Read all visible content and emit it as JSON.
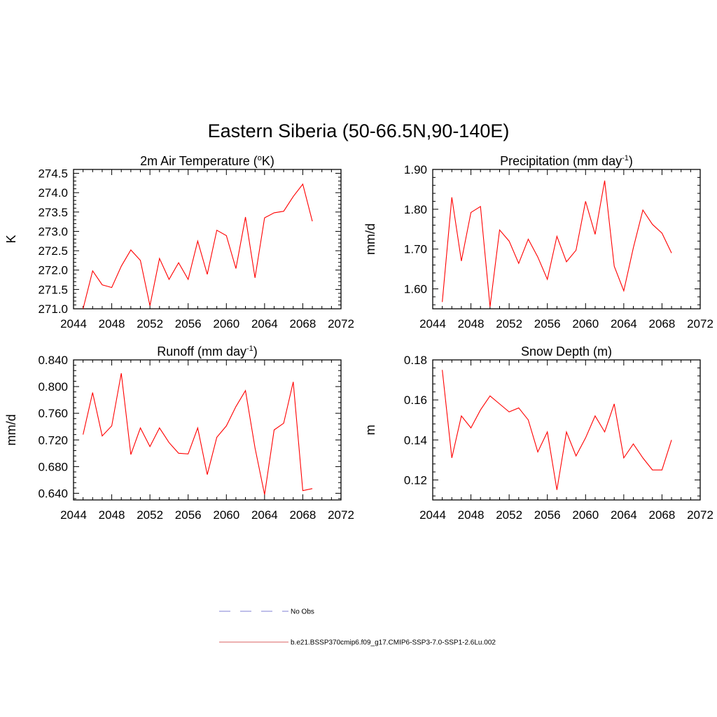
{
  "figure": {
    "title": "Eastern Siberia (50-66.5N,90-140E)"
  },
  "legend": {
    "items": [
      {
        "label": "No Obs",
        "color": "#9999dd",
        "style": "dashed"
      },
      {
        "label": "b.e21.BSSP370cmip6.f09_g17.CMIP6-SSP3-7.0-SSP1-2.6Lu.002",
        "color": "#e08080",
        "style": "solid"
      }
    ]
  },
  "chart_data": [
    {
      "type": "line",
      "title": "2m Air Temperature (",
      "title_sup": "o",
      "title_after": "K)",
      "ylabel": "K",
      "xlim": [
        2044,
        2072
      ],
      "xticks": [
        2044,
        2048,
        2052,
        2056,
        2060,
        2064,
        2068,
        2072
      ],
      "ylim": [
        271.0,
        274.6
      ],
      "yticks": [
        271.0,
        271.5,
        272.0,
        272.5,
        273.0,
        273.5,
        274.0,
        274.5
      ],
      "ytick_labels": [
        "271.0",
        "271.5",
        "272.0",
        "272.5",
        "273.0",
        "273.5",
        "274.0",
        "274.5"
      ],
      "line_color": "#ff0000",
      "x": [
        2045,
        2046,
        2047,
        2048,
        2049,
        2050,
        2051,
        2052,
        2053,
        2054,
        2055,
        2056,
        2057,
        2058,
        2059,
        2060,
        2061,
        2062,
        2063,
        2064,
        2065,
        2066,
        2067,
        2068,
        2069
      ],
      "values": [
        271.0,
        271.98,
        271.62,
        271.55,
        272.1,
        272.52,
        272.25,
        271.08,
        272.3,
        271.76,
        272.19,
        271.76,
        272.75,
        271.89,
        273.03,
        272.89,
        272.04,
        273.37,
        271.8,
        273.35,
        273.48,
        273.52,
        273.9,
        274.22,
        273.26
      ]
    },
    {
      "type": "line",
      "title": "Precipitation (mm day",
      "title_sup": "-1",
      "title_after": ")",
      "ylabel": "mm/d",
      "xlim": [
        2044,
        2072
      ],
      "xticks": [
        2044,
        2048,
        2052,
        2056,
        2060,
        2064,
        2068,
        2072
      ],
      "ylim": [
        1.55,
        1.9
      ],
      "yticks": [
        1.6,
        1.7,
        1.8,
        1.9
      ],
      "ytick_labels": [
        "1.60",
        "1.70",
        "1.80",
        "1.90"
      ],
      "line_color": "#ff0000",
      "x": [
        2045,
        2046,
        2047,
        2048,
        2049,
        2050,
        2051,
        2052,
        2053,
        2054,
        2055,
        2056,
        2057,
        2058,
        2059,
        2060,
        2061,
        2062,
        2063,
        2064,
        2065,
        2066,
        2067,
        2068,
        2069
      ],
      "values": [
        1.567,
        1.83,
        1.67,
        1.792,
        1.807,
        1.555,
        1.748,
        1.72,
        1.664,
        1.725,
        1.68,
        1.624,
        1.732,
        1.668,
        1.697,
        1.82,
        1.737,
        1.872,
        1.657,
        1.595,
        1.703,
        1.798,
        1.762,
        1.74,
        1.69
      ]
    },
    {
      "type": "line",
      "title": "Runoff (mm day",
      "title_sup": "-1",
      "title_after": ")",
      "ylabel": "mm/d",
      "xlim": [
        2044,
        2072
      ],
      "xticks": [
        2044,
        2048,
        2052,
        2056,
        2060,
        2064,
        2068,
        2072
      ],
      "ylim": [
        0.63,
        0.84
      ],
      "yticks": [
        0.64,
        0.68,
        0.72,
        0.76,
        0.8,
        0.84
      ],
      "ytick_labels": [
        "0.640",
        "0.680",
        "0.720",
        "0.760",
        "0.800",
        "0.840"
      ],
      "line_color": "#ff0000",
      "x": [
        2045,
        2046,
        2047,
        2048,
        2049,
        2050,
        2051,
        2052,
        2053,
        2054,
        2055,
        2056,
        2057,
        2058,
        2059,
        2060,
        2061,
        2062,
        2063,
        2064,
        2065,
        2066,
        2067,
        2068,
        2069
      ],
      "values": [
        0.728,
        0.791,
        0.726,
        0.741,
        0.82,
        0.698,
        0.738,
        0.71,
        0.738,
        0.716,
        0.7,
        0.699,
        0.738,
        0.668,
        0.724,
        0.741,
        0.77,
        0.794,
        0.708,
        0.638,
        0.735,
        0.745,
        0.807,
        0.644,
        0.647
      ]
    },
    {
      "type": "line",
      "title": "Snow Depth (m)",
      "title_sup": "",
      "title_after": "",
      "ylabel": "m",
      "xlim": [
        2044,
        2072
      ],
      "xticks": [
        2044,
        2048,
        2052,
        2056,
        2060,
        2064,
        2068,
        2072
      ],
      "ylim": [
        0.11,
        0.18
      ],
      "yticks": [
        0.12,
        0.14,
        0.16,
        0.18
      ],
      "ytick_labels": [
        "0.12",
        "0.14",
        "0.16",
        "0.18"
      ],
      "line_color": "#ff0000",
      "x": [
        2045,
        2046,
        2047,
        2048,
        2049,
        2050,
        2051,
        2052,
        2053,
        2054,
        2055,
        2056,
        2057,
        2058,
        2059,
        2060,
        2061,
        2062,
        2063,
        2064,
        2065,
        2066,
        2067,
        2068,
        2069
      ],
      "values": [
        0.175,
        0.131,
        0.152,
        0.146,
        0.155,
        0.162,
        0.158,
        0.154,
        0.156,
        0.15,
        0.134,
        0.144,
        0.115,
        0.144,
        0.132,
        0.141,
        0.152,
        0.144,
        0.158,
        0.131,
        0.138,
        0.131,
        0.125,
        0.125,
        0.14
      ]
    }
  ]
}
